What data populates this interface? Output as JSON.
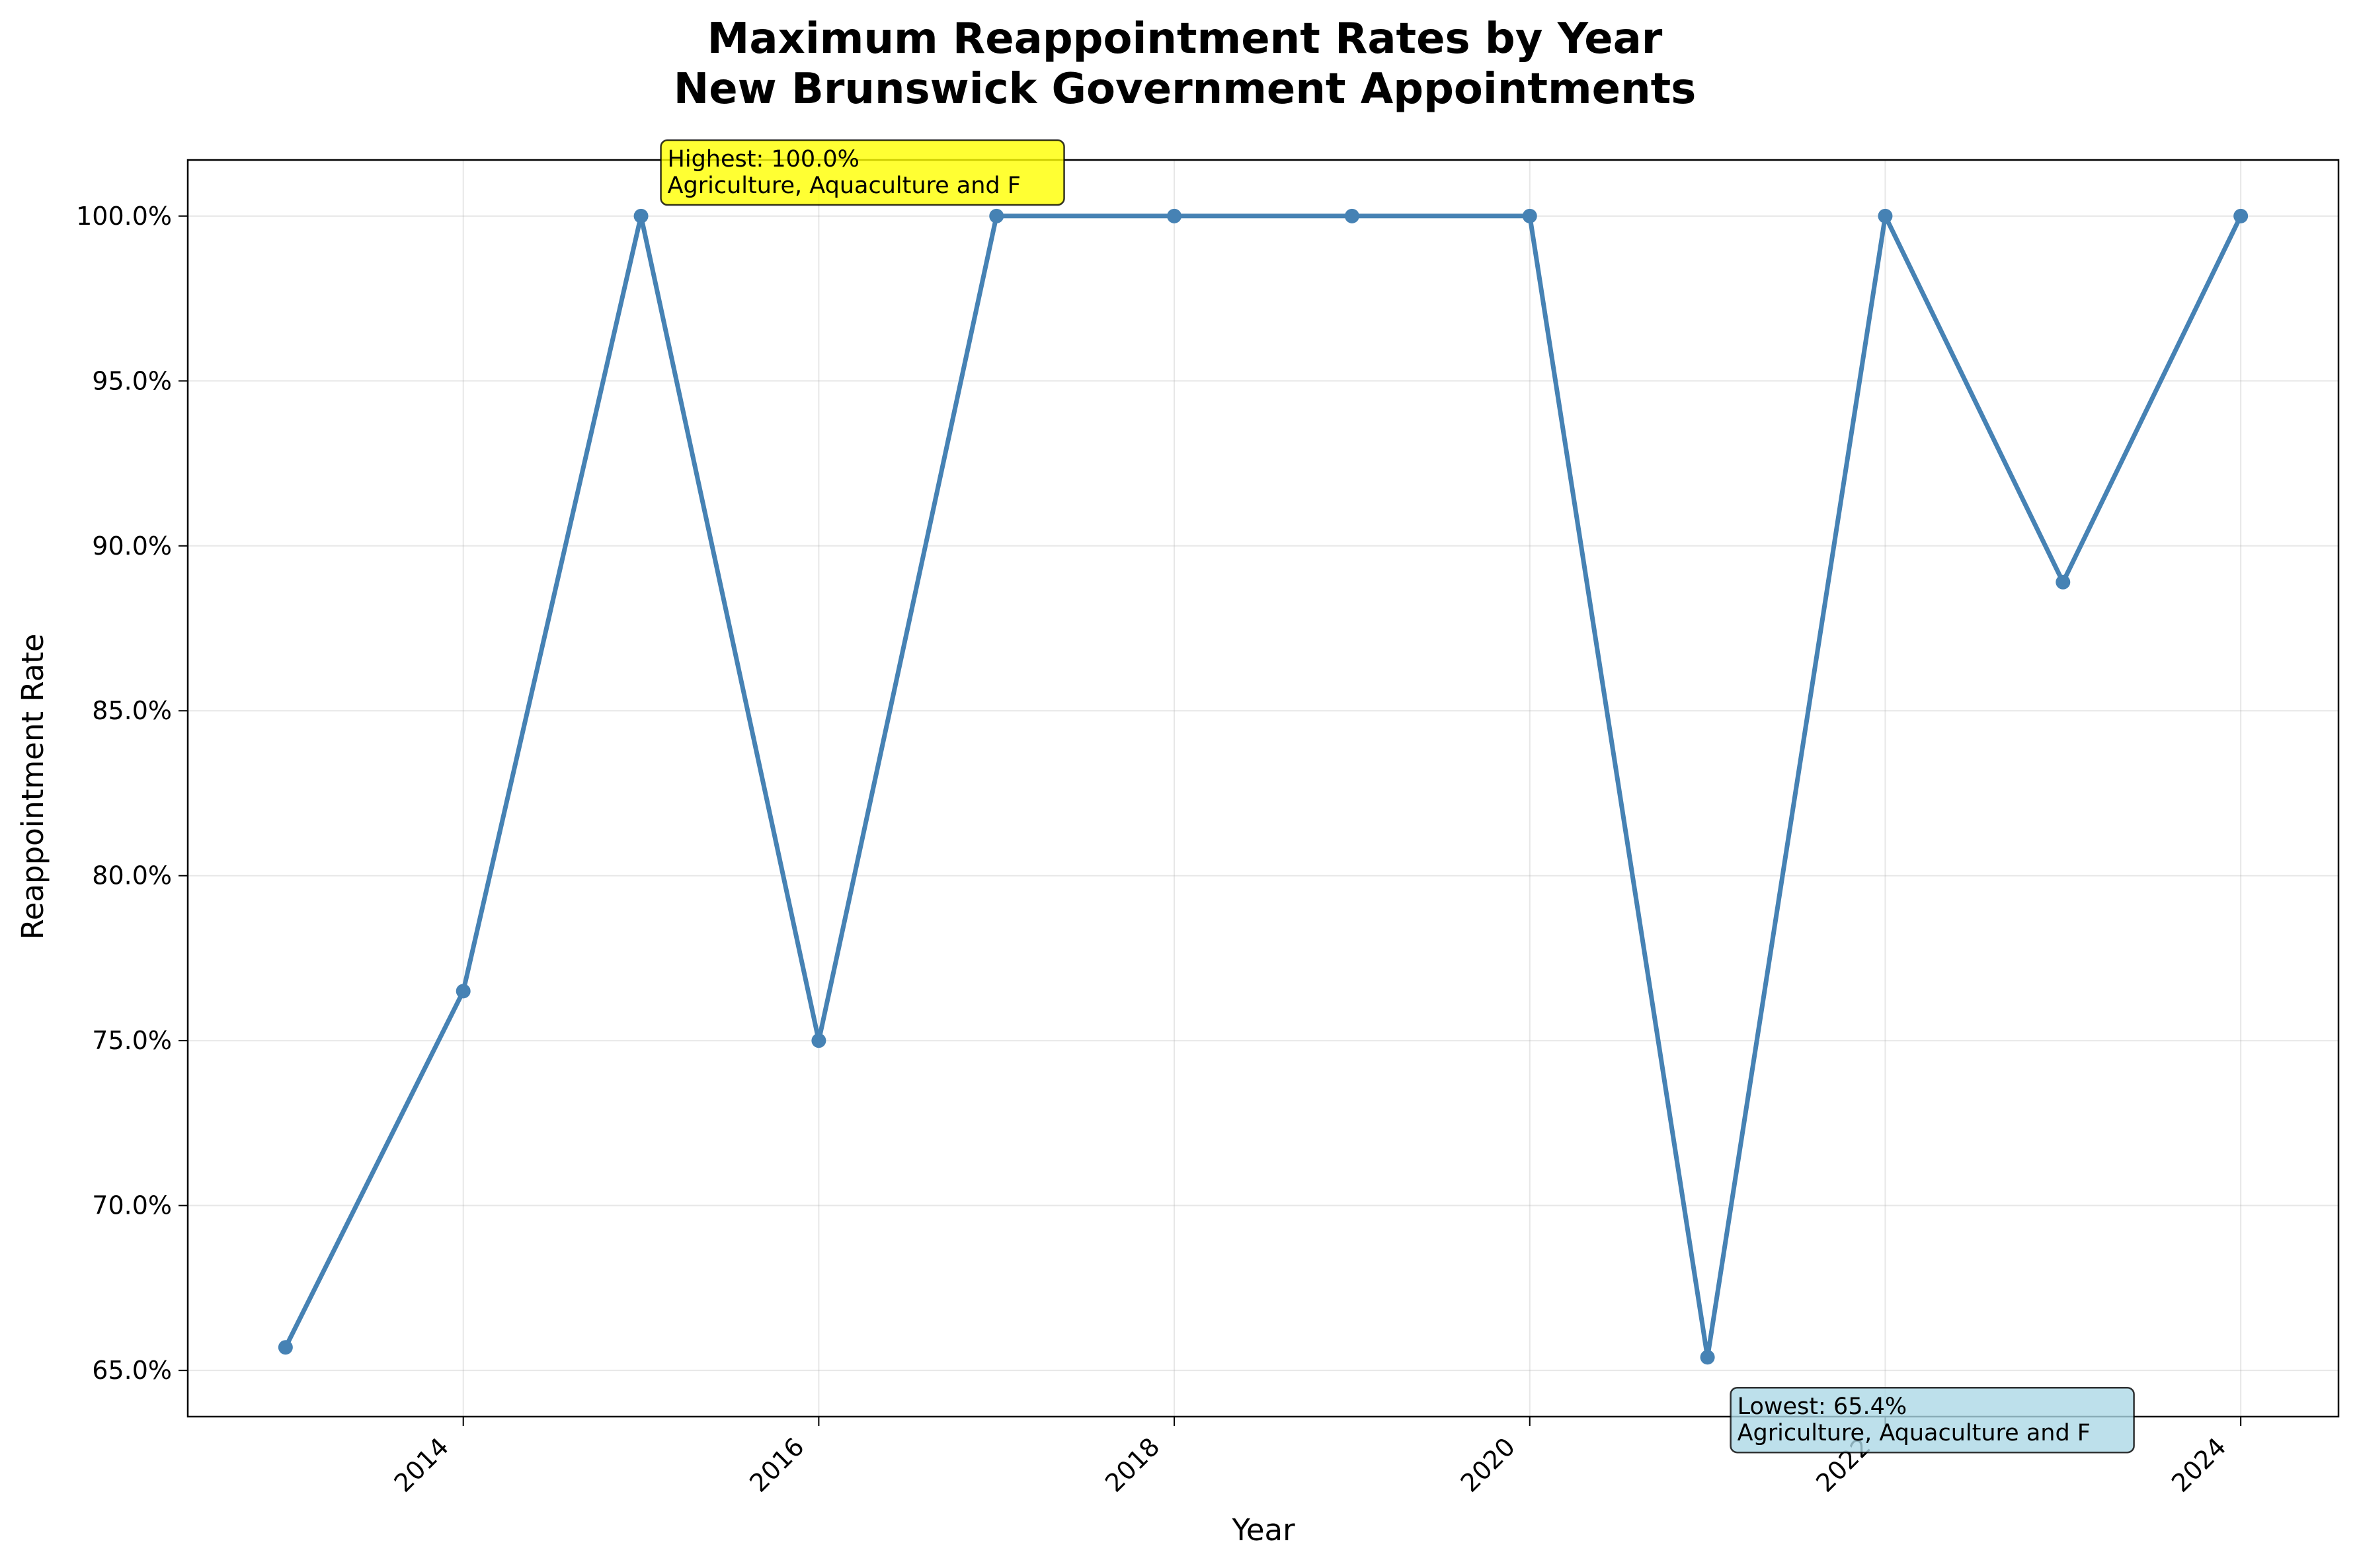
{
  "chart_data": {
    "type": "line",
    "title": "Maximum Reappointment Rates by Year",
    "subtitle": "New Brunswick Government Appointments",
    "xlabel": "Year",
    "ylabel": "Reappointment Rate",
    "x": [
      2013,
      2014,
      2015,
      2016,
      2017,
      2018,
      2019,
      2020,
      2021,
      2022,
      2023,
      2024
    ],
    "series": [
      {
        "name": "",
        "values": [
          65.7,
          76.5,
          100.0,
          75.0,
          100.0,
          100.0,
          100.0,
          100.0,
          65.4,
          100.0,
          88.9,
          100.0
        ]
      }
    ],
    "xlim": [
      2012.45,
      2024.55
    ],
    "ylim": [
      63.6,
      101.7
    ],
    "xticks": [
      2014,
      2016,
      2018,
      2020,
      2022,
      2024
    ],
    "xtick_labels": [
      "2014",
      "2016",
      "2018",
      "2020",
      "2022",
      "2024"
    ],
    "yticks": [
      65,
      70,
      75,
      80,
      85,
      90,
      95,
      100
    ],
    "ytick_labels": [
      "65.0%",
      "70.0%",
      "75.0%",
      "80.0%",
      "85.0%",
      "90.0%",
      "95.0%",
      "100.0%"
    ],
    "grid": true,
    "line_color": "#4682b4",
    "annotations": [
      {
        "id": "highest",
        "x": 2015,
        "y": 100.0,
        "lines": [
          "Highest: 100.0%",
          "Agriculture, Aquaculture and F"
        ],
        "bg_color": "#ffff00"
      },
      {
        "id": "lowest",
        "x": 2021,
        "y": 65.4,
        "lines": [
          "Lowest: 65.4%",
          "Agriculture, Aquaculture and F"
        ],
        "bg_color": "#add8e6"
      }
    ]
  }
}
